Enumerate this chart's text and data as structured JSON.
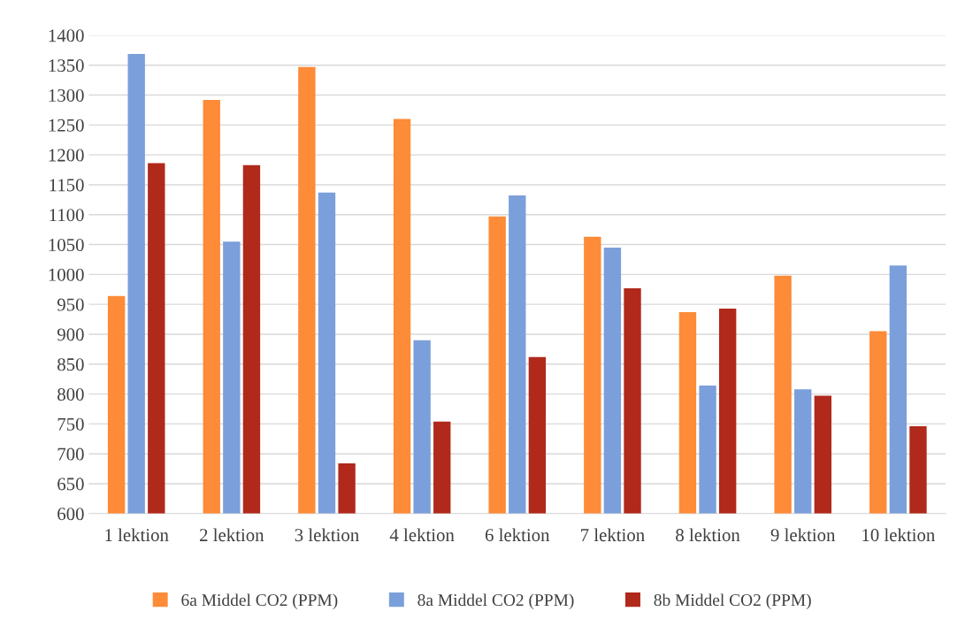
{
  "chart_data": {
    "type": "bar",
    "categories": [
      "1 lektion",
      "2 lektion",
      "3 lektion",
      "4 lektion",
      "6 lektion",
      "7 lektion",
      "8 lektion",
      "9 lektion",
      "10 lektion"
    ],
    "series": [
      {
        "name": "6a Middel CO2 (PPM)",
        "color": "#fd8b37",
        "values": [
          964,
          1292,
          1347,
          1260,
          1097,
          1063,
          937,
          998,
          905
        ]
      },
      {
        "name": "8a Middel CO2 (PPM)",
        "color": "#7b9fda",
        "values": [
          1369,
          1055,
          1137,
          890,
          1132,
          1045,
          814,
          808,
          1015
        ]
      },
      {
        "name": "8b Middel CO2 (PPM)",
        "color": "#b0291b",
        "values": [
          1186,
          1183,
          684,
          754,
          862,
          977,
          943,
          797,
          746
        ]
      }
    ],
    "ylim": [
      600,
      1400
    ],
    "yticks": [
      600,
      650,
      700,
      750,
      800,
      850,
      900,
      950,
      1000,
      1050,
      1100,
      1150,
      1200,
      1250,
      1300,
      1350,
      1400
    ],
    "grid": "y",
    "legend": "bottom"
  }
}
